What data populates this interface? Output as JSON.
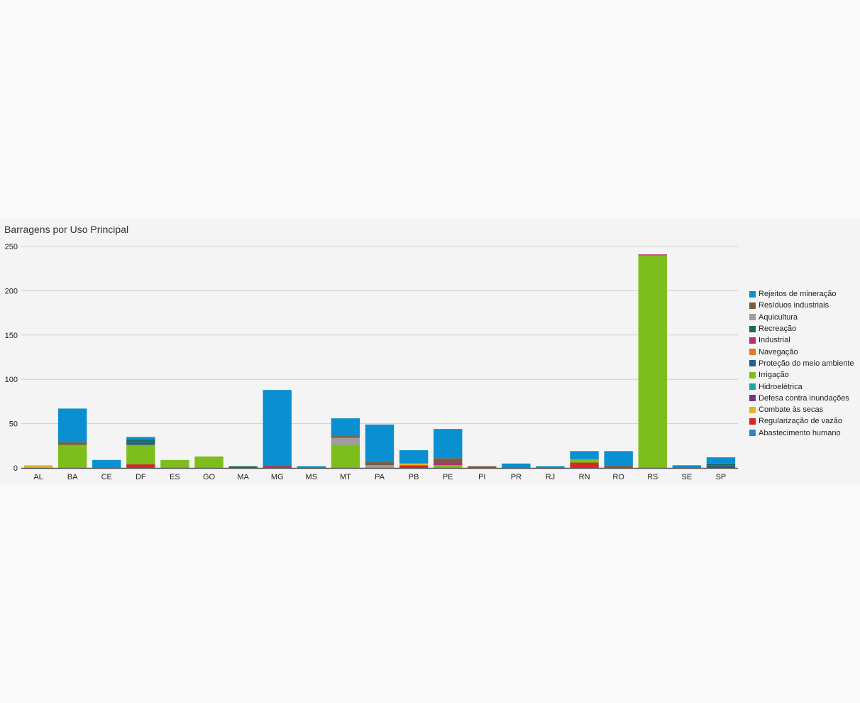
{
  "chart_data": {
    "type": "bar",
    "stacked": true,
    "title": "Barragens por Uso Principal",
    "xlabel": "",
    "ylabel": "",
    "ylim": [
      0,
      250
    ],
    "yticks": [
      0,
      50,
      100,
      150,
      200,
      250
    ],
    "grid": true,
    "legend_position": "right",
    "categories": [
      "AL",
      "BA",
      "CE",
      "DF",
      "ES",
      "GO",
      "MA",
      "MG",
      "MS",
      "MT",
      "PA",
      "PB",
      "PE",
      "PI",
      "PR",
      "RJ",
      "RN",
      "RO",
      "RS",
      "SE",
      "SP"
    ],
    "series": [
      {
        "name": "Abastecimento humano",
        "color": "#2e86c1",
        "values": [
          0,
          0,
          0,
          0,
          0,
          0,
          0,
          0,
          0,
          0,
          0,
          0,
          0,
          0,
          0,
          0,
          0,
          0,
          0,
          0,
          0
        ]
      },
      {
        "name": "Regularização de vazão",
        "color": "#d62728",
        "values": [
          0,
          0,
          0,
          4,
          0,
          0,
          0,
          2,
          0,
          0,
          0,
          3,
          0,
          0,
          0,
          0,
          6,
          0,
          0,
          0,
          0
        ]
      },
      {
        "name": "Combate às secas",
        "color": "#e6b422",
        "values": [
          3,
          0,
          0,
          0,
          0,
          0,
          0,
          0,
          0,
          0,
          0,
          2,
          0,
          0,
          0,
          0,
          0,
          0,
          0,
          0,
          0
        ]
      },
      {
        "name": "Defesa contra inundações",
        "color": "#6b3a8c",
        "values": [
          0,
          0,
          0,
          0,
          0,
          0,
          0,
          0,
          0,
          0,
          0,
          0,
          0,
          0,
          0,
          0,
          0,
          0,
          0,
          0,
          0
        ]
      },
      {
        "name": "Hidroelétrica",
        "color": "#1fa69a",
        "values": [
          0,
          0,
          0,
          0,
          0,
          0,
          0,
          0,
          0,
          0,
          0,
          0,
          0,
          0,
          0,
          0,
          0,
          0,
          0,
          0,
          0
        ]
      },
      {
        "name": "Irrigação",
        "color": "#7dbe1c",
        "values": [
          0,
          26,
          0,
          22,
          9,
          13,
          0,
          0,
          0,
          26,
          0,
          0,
          3,
          0,
          0,
          0,
          4,
          0,
          240,
          0,
          0
        ]
      },
      {
        "name": "Proteção do meio ambiente",
        "color": "#2b5a8c",
        "values": [
          0,
          0,
          0,
          3,
          0,
          0,
          0,
          0,
          0,
          0,
          0,
          0,
          0,
          0,
          0,
          0,
          0,
          0,
          0,
          0,
          3
        ]
      },
      {
        "name": "Navegação",
        "color": "#e07b24",
        "values": [
          0,
          0,
          0,
          0,
          0,
          0,
          0,
          0,
          0,
          0,
          0,
          0,
          0,
          0,
          0,
          0,
          0,
          0,
          0,
          0,
          0
        ]
      },
      {
        "name": "Industrial",
        "color": "#b5306e",
        "values": [
          0,
          0,
          0,
          0,
          0,
          0,
          0,
          0,
          0,
          0,
          0,
          0,
          3,
          0,
          0,
          0,
          0,
          0,
          1,
          0,
          0
        ]
      },
      {
        "name": "Recreação",
        "color": "#1e6b55",
        "values": [
          0,
          0,
          0,
          3,
          0,
          0,
          2,
          0,
          0,
          0,
          0,
          0,
          0,
          0,
          0,
          0,
          0,
          0,
          0,
          0,
          2
        ]
      },
      {
        "name": "Aquicultura",
        "color": "#9e9e9e",
        "values": [
          0,
          0,
          0,
          0,
          0,
          0,
          0,
          0,
          0,
          8,
          3,
          0,
          0,
          0,
          0,
          0,
          0,
          0,
          0,
          0,
          0
        ]
      },
      {
        "name": "Resíduos industriais",
        "color": "#7a5c45",
        "values": [
          0,
          3,
          0,
          0,
          0,
          0,
          0,
          0,
          0,
          2,
          4,
          0,
          5,
          2,
          0,
          0,
          0,
          3,
          0,
          0,
          0
        ]
      },
      {
        "name": "Rejeitos de mineração",
        "color": "#0a8fd1",
        "values": [
          0,
          38,
          9,
          3,
          0,
          0,
          0,
          86,
          2,
          20,
          42,
          15,
          33,
          0,
          5,
          2,
          9,
          16,
          0,
          3,
          7
        ]
      }
    ]
  }
}
